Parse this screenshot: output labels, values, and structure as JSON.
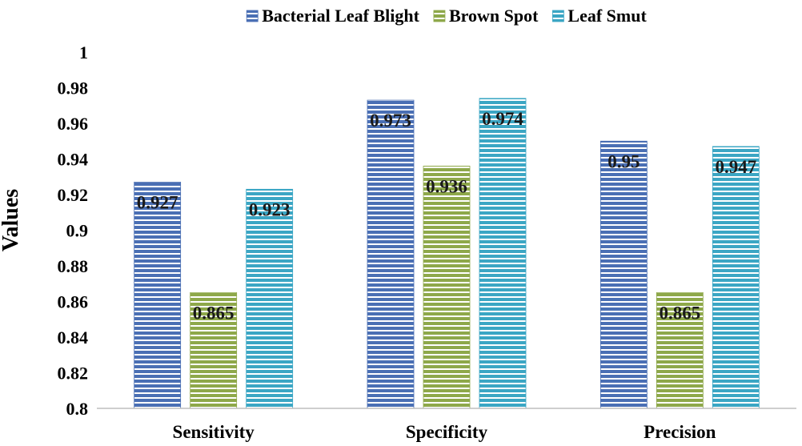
{
  "chart_data": {
    "type": "bar",
    "title": "",
    "xlabel": "",
    "ylabel": "Values",
    "categories": [
      "Sensitivity",
      "Specificity",
      "Precision"
    ],
    "series": [
      {
        "name": "Bacterial Leaf Blight",
        "values": [
          0.927,
          0.973,
          0.95
        ],
        "labels": [
          "0.927",
          "0.973",
          "0.95"
        ],
        "color": "#4a6fb4"
      },
      {
        "name": "Brown Spot",
        "values": [
          0.865,
          0.936,
          0.865
        ],
        "labels": [
          "0.865",
          "0.936",
          "0.865"
        ],
        "color": "#8ea84a"
      },
      {
        "name": "Leaf Smut",
        "values": [
          0.923,
          0.974,
          0.947
        ],
        "labels": [
          "0.923",
          "0.974",
          "0.947"
        ],
        "color": "#3ba6c4"
      }
    ],
    "ylim": [
      0.8,
      1.0
    ],
    "yticks": [
      "0.8",
      "0.82",
      "0.84",
      "0.86",
      "0.88",
      "0.9",
      "0.92",
      "0.94",
      "0.96",
      "0.98",
      "1"
    ],
    "grid": false,
    "legend": "top-center"
  }
}
